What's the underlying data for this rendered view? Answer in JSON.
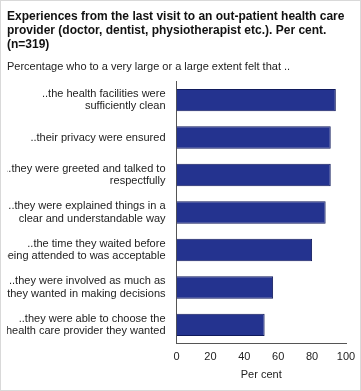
{
  "chart_data": {
    "type": "bar",
    "orientation": "horizontal",
    "title": "Experiences from the last visit to an out-patient health care provider (doctor, dentist, physiotherapist etc.). Per cent. (n=319)",
    "subtitle": "Percentage who to a very large or a large extent felt that ..",
    "x_label": "Per cent",
    "categories": [
      "..the health facilities were sufficiently clean",
      "..their privacy were ensured",
      "..they were greeted and talked to respectfully",
      "..they were explained things  in a clear and understandable way",
      "..the time they waited before being attended to was acceptable",
      "..they were involved as much as they wanted in making decisions",
      "..they were able to choose the health care provider they wanted"
    ],
    "values": [
      94,
      91,
      91,
      88,
      80,
      57,
      52
    ],
    "color": "#24338f",
    "xlim": [
      0,
      100
    ],
    "xticks": [
      0,
      20,
      40,
      60,
      80,
      100
    ],
    "grid": false
  }
}
